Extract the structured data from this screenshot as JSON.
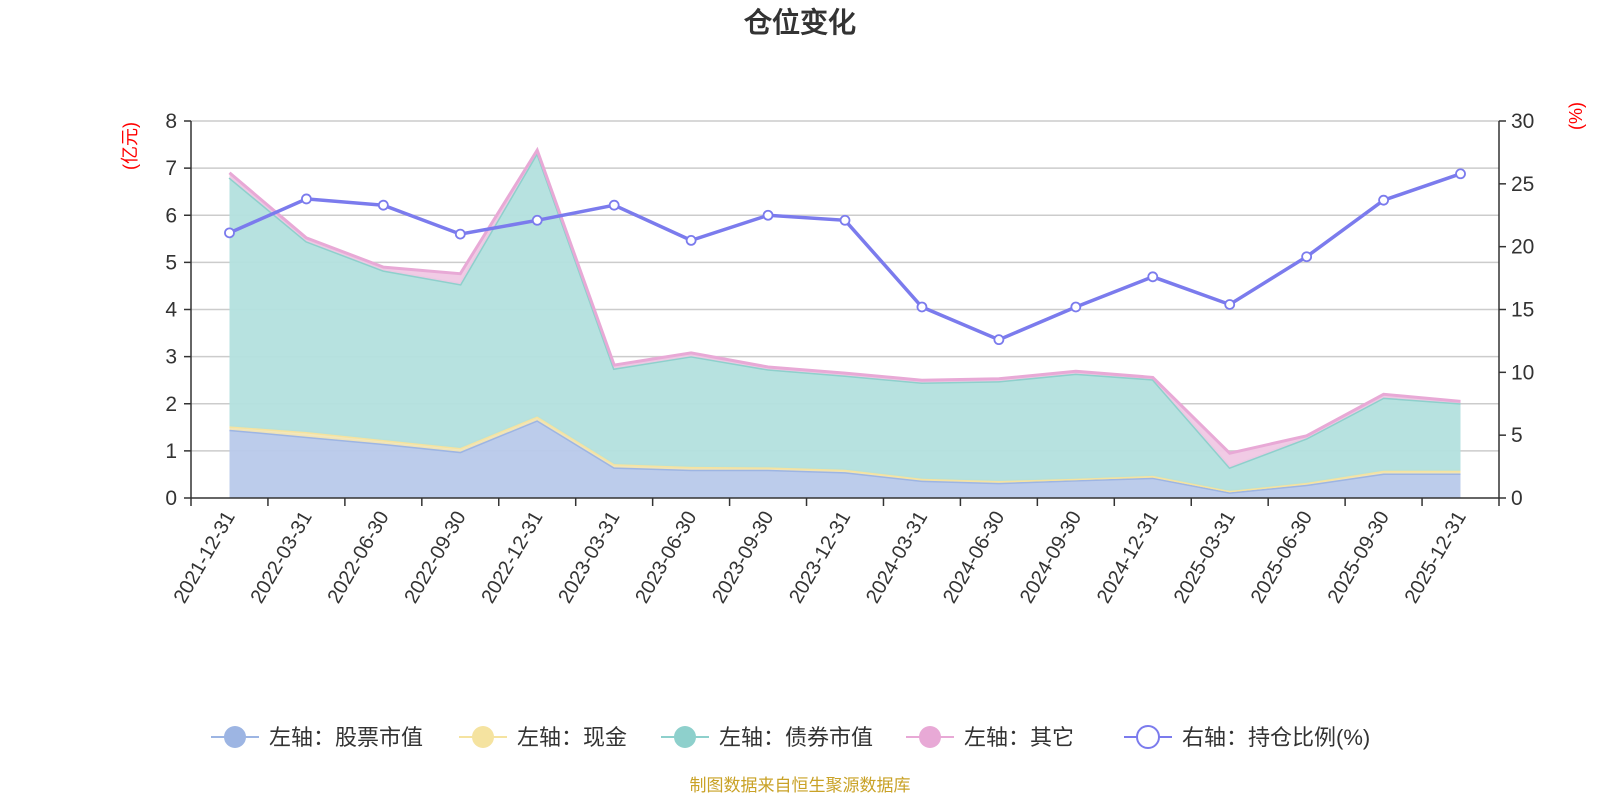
{
  "chart_data": {
    "type": "area",
    "title": "仓位变化",
    "y_left_unit": "(亿元)",
    "y_right_unit": "(%)",
    "y_left_range": [
      0,
      8
    ],
    "y_left_ticks": [
      "0",
      "1",
      "2",
      "3",
      "4",
      "5",
      "6",
      "7",
      "8"
    ],
    "y_right_range": [
      0,
      30
    ],
    "y_right_ticks": [
      "0",
      "5",
      "10",
      "15",
      "20",
      "25",
      "30"
    ],
    "grid": true,
    "legend_position": "bottom",
    "categories": [
      "2021-12-31",
      "2022-03-31",
      "2022-06-30",
      "2022-09-30",
      "2022-12-31",
      "2023-03-31",
      "2023-06-30",
      "2023-09-30",
      "2023-12-31",
      "2024-03-31",
      "2024-06-30",
      "2024-09-30",
      "2024-12-31",
      "2025-03-31",
      "2025-06-30",
      "2025-09-30",
      "2025-12-31"
    ],
    "stacked_series": [
      {
        "name": "左轴：股票市值",
        "color": "#9db5e3",
        "fill": "#b8c9ea",
        "values": [
          1.45,
          1.3,
          1.15,
          0.98,
          1.65,
          0.65,
          0.6,
          0.6,
          0.55,
          0.37,
          0.32,
          0.38,
          0.43,
          0.12,
          0.28,
          0.52,
          0.52
        ]
      },
      {
        "name": "左轴：现金",
        "color": "#f5e3a0",
        "fill": "#f3e6b5",
        "values": [
          0.07,
          0.1,
          0.08,
          0.08,
          0.08,
          0.07,
          0.06,
          0.05,
          0.05,
          0.04,
          0.04,
          0.03,
          0.04,
          0.03,
          0.04,
          0.06,
          0.06
        ]
      },
      {
        "name": "左轴：债券市值",
        "color": "#8ed0cc",
        "fill": "#b3e0de",
        "values": [
          5.28,
          4.05,
          3.6,
          3.48,
          5.6,
          2.03,
          2.35,
          2.08,
          2.0,
          2.04,
          2.12,
          2.23,
          2.05,
          0.5,
          0.95,
          1.55,
          1.43
        ]
      },
      {
        "name": "左轴：其它",
        "color": "#e8a9d6",
        "fill": "#f0c8e4",
        "values": [
          0.1,
          0.07,
          0.07,
          0.22,
          0.05,
          0.07,
          0.07,
          0.05,
          0.05,
          0.05,
          0.05,
          0.05,
          0.04,
          0.3,
          0.05,
          0.07,
          0.04
        ]
      }
    ],
    "line_series": {
      "name": "右轴：持仓比例(%)",
      "color": "#7b7bed",
      "values": [
        21.1,
        23.8,
        23.3,
        21.0,
        22.1,
        23.3,
        20.5,
        22.5,
        22.1,
        15.2,
        12.6,
        15.2,
        17.6,
        15.4,
        19.2,
        23.7,
        25.8
      ]
    }
  },
  "source_note": "制图数据来自恒生聚源数据库"
}
